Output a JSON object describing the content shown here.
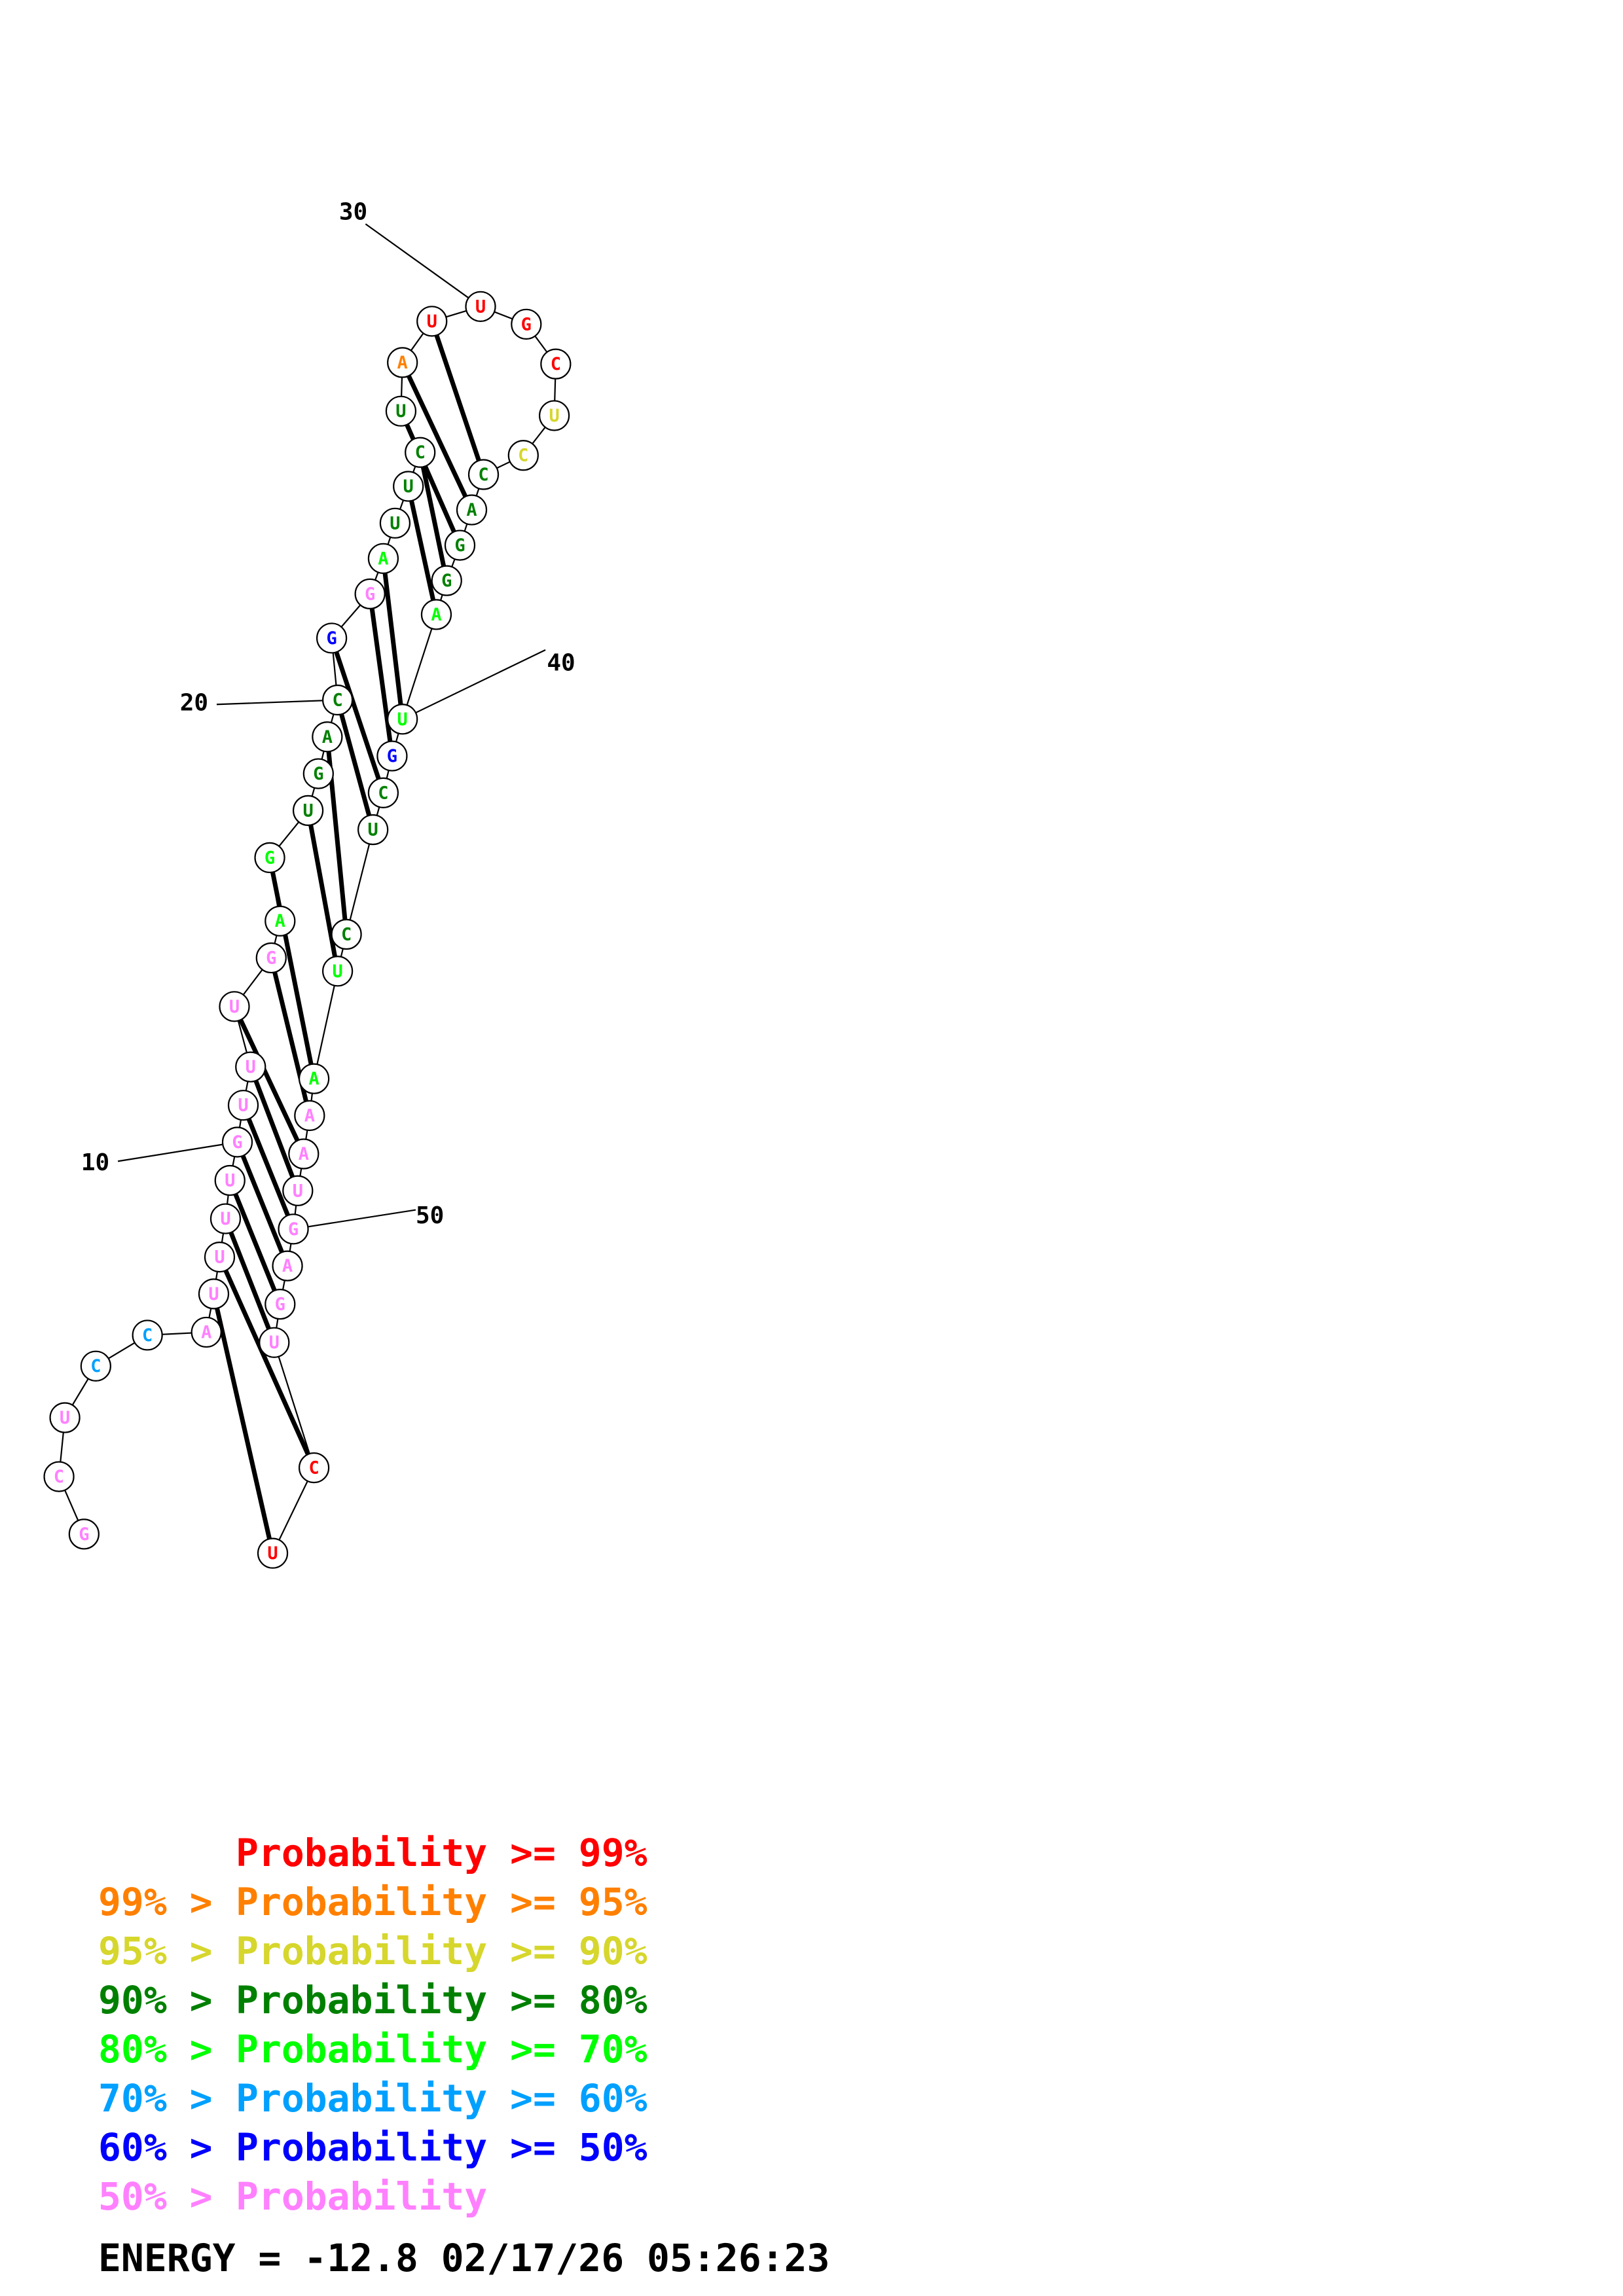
{
  "sequence": "GCUCCAUUUUGUUUGAGUGACGGAUUCUAUUGCUCCAGGAUGCUCUAAAUGAGUCU",
  "probability_colors": [
    "#ff0000",
    "#ff8000",
    "#d6d62d",
    "#008000",
    "#00ff00",
    "#00a0ff",
    "#0000ff",
    "#ff80ff"
  ],
  "nucleotide_classes": [
    7,
    7,
    7,
    5,
    5,
    7,
    7,
    7,
    7,
    7,
    7,
    7,
    7,
    7,
    7,
    4,
    4,
    3,
    3,
    3,
    3,
    6,
    7,
    4,
    3,
    3,
    3,
    3,
    1,
    0,
    0,
    0,
    0,
    2,
    2,
    3,
    3,
    3,
    3,
    4,
    4,
    6,
    3,
    3,
    3,
    4,
    4,
    7,
    7,
    7,
    7,
    7,
    7,
    7,
    0,
    0
  ],
  "pairs": [
    [
      6,
      55
    ],
    [
      7,
      54
    ],
    [
      8,
      53
    ],
    [
      9,
      52
    ],
    [
      10,
      51
    ],
    [
      11,
      50
    ],
    [
      12,
      49
    ],
    [
      13,
      48
    ],
    [
      14,
      47
    ],
    [
      16,
      46
    ],
    [
      17,
      45
    ],
    [
      19,
      44
    ],
    [
      20,
      43
    ],
    [
      21,
      42
    ],
    [
      22,
      41
    ],
    [
      23,
      40
    ],
    [
      25,
      39
    ],
    [
      26,
      38
    ],
    [
      27,
      37
    ],
    [
      28,
      36
    ],
    [
      29,
      35
    ]
  ],
  "tick_labels": [
    {
      "label": "10",
      "index": 10
    },
    {
      "label": "20",
      "index": 20
    },
    {
      "label": "30",
      "index": 30
    },
    {
      "label": "40",
      "index": 40
    },
    {
      "label": "50",
      "index": 50
    }
  ],
  "legend": [
    {
      "prefix": "",
      "text": "Probability >= 99%",
      "color": "#ff0000"
    },
    {
      "prefix": "99% > ",
      "text": "Probability >= 95%",
      "color": "#ff8000"
    },
    {
      "prefix": "95% > ",
      "text": "Probability >= 90%",
      "color": "#d6d62d"
    },
    {
      "prefix": "90% > ",
      "text": "Probability >= 80%",
      "color": "#008000"
    },
    {
      "prefix": "80% > ",
      "text": "Probability >= 70%",
      "color": "#00ff00"
    },
    {
      "prefix": "70% > ",
      "text": "Probability >= 60%",
      "color": "#00a0ff"
    },
    {
      "prefix": "60% > ",
      "text": "Probability >= 50%",
      "color": "#0000ff"
    },
    {
      "prefix": "50% > ",
      "text": "Probability",
      "color": "#ff80ff"
    }
  ],
  "footer": "ENERGY = -12.8  02/17/26 05:26:23"
}
